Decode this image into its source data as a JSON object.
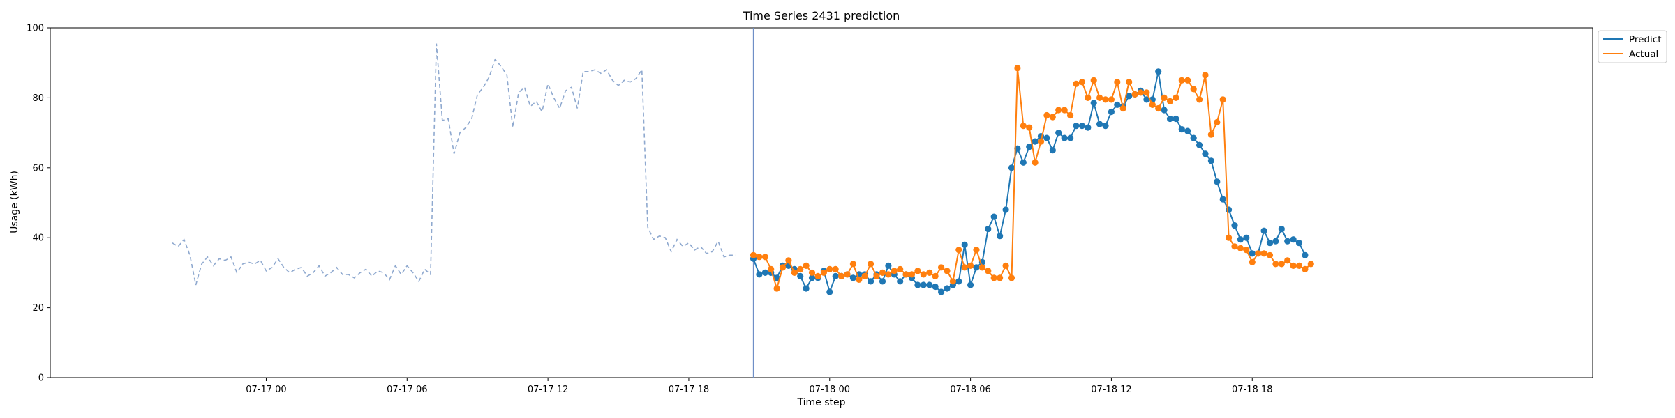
{
  "chart_data": {
    "type": "line",
    "title": "Time Series 2431 prediction",
    "xlabel": "Time step",
    "ylabel": "Usage (kWh)",
    "ylim": [
      0,
      100
    ],
    "yticks": [
      "0",
      "20",
      "40",
      "60",
      "80",
      "100"
    ],
    "x_range_hours": [
      -9.2,
      56.5
    ],
    "xticks": [
      {
        "hour": 0,
        "label": "07-17 00"
      },
      {
        "hour": 6,
        "label": "07-17 06"
      },
      {
        "hour": 12,
        "label": "07-17 12"
      },
      {
        "hour": 18,
        "label": "07-17 18"
      },
      {
        "hour": 24,
        "label": "07-18 00"
      },
      {
        "hour": 30,
        "label": "07-18 06"
      },
      {
        "hour": 36,
        "label": "07-18 12"
      },
      {
        "hour": 42,
        "label": "07-18 18"
      }
    ],
    "x_note": "x values are hours from 07-17 00:00, sampled every 15 minutes",
    "forecast_start_hour": 20.75,
    "legend_position": "upper-right outside",
    "grid": false,
    "history": {
      "start_hour": -4.0,
      "step_hours": 0.25,
      "color": "#8fa9cf",
      "style": "dashed",
      "values": [
        38.5,
        37.5,
        39.5,
        35,
        26.5,
        32.5,
        34.5,
        32,
        34,
        33.5,
        34.5,
        30,
        32.5,
        33,
        32.5,
        33.5,
        30.5,
        31.5,
        34,
        31.5,
        30,
        31,
        31.5,
        29,
        30,
        32,
        29,
        30,
        31.5,
        29.5,
        29.5,
        28.5,
        30,
        31,
        29,
        30.5,
        30,
        28,
        32,
        29.5,
        32,
        30,
        27.5,
        31,
        29.5,
        95.5,
        73.5,
        74,
        64,
        70,
        71.5,
        74,
        81,
        83,
        86,
        91,
        89,
        86.5,
        71.5,
        81.5,
        83,
        77.5,
        79,
        76,
        84,
        80,
        77,
        82,
        83,
        77,
        87.5,
        87.5,
        88,
        87,
        88,
        85,
        83.5,
        85,
        84.5,
        85.5,
        88,
        43,
        39.5,
        40.5,
        40,
        36,
        39.5,
        37.5,
        38.5,
        36.5,
        37.5,
        35.5,
        36,
        39,
        34.5,
        35,
        35
      ]
    },
    "series": [
      {
        "name": "Predict",
        "color": "#1f77b4",
        "start_hour": 20.75,
        "step_hours": 0.25,
        "values": [
          34,
          29.5,
          30,
          30,
          28.5,
          32,
          32,
          31,
          29,
          25.5,
          28.5,
          28.5,
          30.5,
          24.5,
          29,
          29,
          29.5,
          28.5,
          29.5,
          29.5,
          27.5,
          29.5,
          27.5,
          32,
          29.5,
          27.5,
          29.5,
          28.5,
          26.5,
          26.5,
          26.5,
          26,
          24.5,
          25.5,
          26.5,
          27.5,
          38,
          26.5,
          31.5,
          33,
          42.5,
          46,
          40.5,
          48,
          60,
          65.5,
          61.5,
          66,
          67.5,
          69,
          68.5,
          65,
          70,
          68.5,
          68.5,
          72,
          72,
          71.5,
          78.5,
          72.5,
          72,
          76,
          78,
          77.5,
          80.5,
          81,
          82,
          79.5,
          79.5,
          87.5,
          76.5,
          74,
          74,
          71,
          70.5,
          68.5,
          66.5,
          64,
          62,
          56,
          51,
          48,
          43.5,
          39.5,
          40,
          35.5,
          35.5,
          42,
          38.5,
          39,
          42.5,
          39,
          39.5,
          38.5,
          35
        ]
      },
      {
        "name": "Actual",
        "color": "#ff7f0e",
        "start_hour": 20.75,
        "step_hours": 0.25,
        "values": [
          35,
          34.5,
          34.5,
          31,
          25.5,
          31.5,
          33.5,
          30,
          31,
          32,
          30,
          29,
          30,
          31,
          31,
          29,
          29.5,
          32.5,
          28,
          29,
          32.5,
          29,
          30,
          29.5,
          30.5,
          31,
          29.5,
          29.5,
          30.5,
          29.5,
          30,
          29,
          31.5,
          30.5,
          27.5,
          36.5,
          31.5,
          32,
          36.5,
          31.5,
          30.5,
          28.5,
          28.5,
          32,
          28.5,
          88.5,
          72,
          71.5,
          61.5,
          67.5,
          75,
          74.5,
          76.5,
          76.5,
          75,
          84,
          84.5,
          80,
          85,
          80,
          79.5,
          79.5,
          84.5,
          77,
          84.5,
          81,
          81.5,
          81.5,
          78,
          77,
          80,
          79,
          80,
          85,
          85,
          82.5,
          79.5,
          86.5,
          69.5,
          73,
          79.5,
          40,
          37.5,
          37,
          36.5,
          33,
          35.5,
          35.5,
          35,
          32.5,
          32.5,
          33.5,
          32,
          32,
          31,
          32.5
        ]
      }
    ]
  }
}
